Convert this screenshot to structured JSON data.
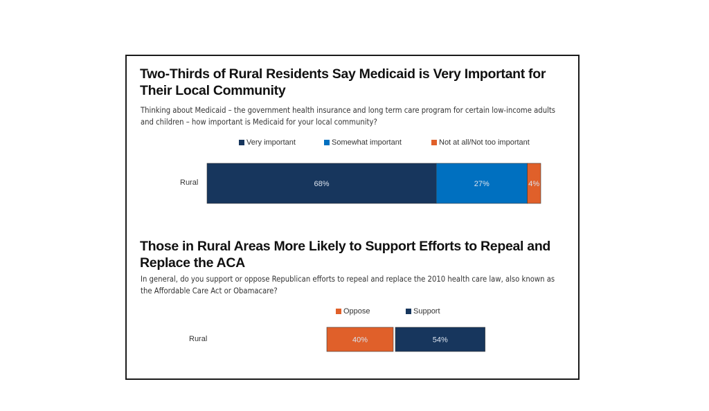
{
  "chart_data": [
    {
      "type": "bar",
      "orientation": "horizontal",
      "stacked": true,
      "title": "Two-Thirds of Rural Residents Say Medicaid is Very Important for Their Local Community",
      "subtitle": "Thinking about Medicaid – the government health insurance and long term care program for certain low-income adults and children – how important is Medicaid for your local community?",
      "categories": [
        "Rural"
      ],
      "series": [
        {
          "name": "Very important",
          "values": [
            68
          ],
          "label": "68%",
          "color": "#17365d"
        },
        {
          "name": "Somewhat important",
          "values": [
            27
          ],
          "label": "27%",
          "color": "#0070c0"
        },
        {
          "name": "Not at all/Not too important",
          "values": [
            4
          ],
          "label": "4%",
          "color": "#e0602a"
        }
      ],
      "legend": "top",
      "xlim": [
        0,
        100
      ],
      "grid": false
    },
    {
      "type": "bar",
      "orientation": "horizontal",
      "stacked": true,
      "title": "Those in Rural Areas More Likely to Support Efforts to Repeal and Replace the ACA",
      "subtitle": "In general, do you support or oppose Republican efforts to repeal and replace the 2010 health care law, also known as the Affordable Care Act or Obamacare?",
      "categories": [
        "Rural"
      ],
      "series": [
        {
          "name": "Oppose",
          "values": [
            40
          ],
          "label": "40%",
          "color": "#e0602a"
        },
        {
          "name": "Support",
          "values": [
            54
          ],
          "label": "54%",
          "color": "#17365d"
        }
      ],
      "legend": "top",
      "grid": false
    }
  ]
}
